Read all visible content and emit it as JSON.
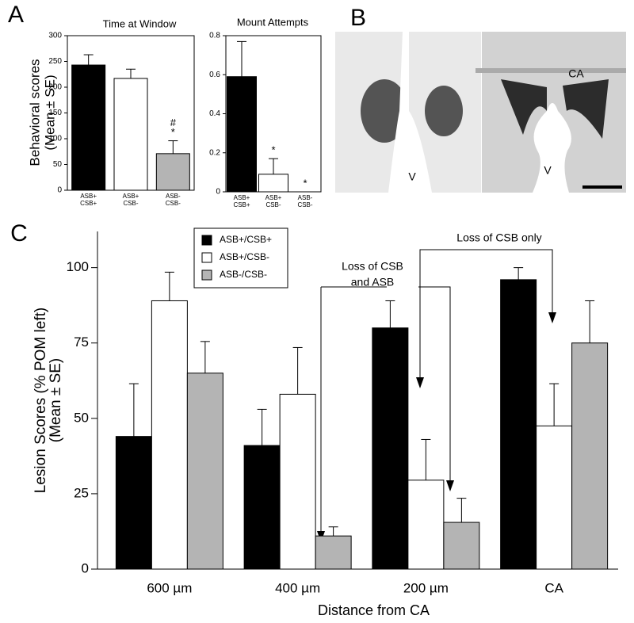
{
  "panels": [
    "A",
    "B",
    "C"
  ],
  "image_labels": [
    "V",
    "V",
    "CA"
  ],
  "chart_data": [
    {
      "type": "bar",
      "title": "Time at Window",
      "ylabel": [
        "Behavioral scores",
        "(Mean ± SE)"
      ],
      "categories": [
        [
          "ASB+",
          "CSB+"
        ],
        [
          "ASB+",
          "CSB-"
        ],
        [
          "ASB-",
          "CSB-"
        ]
      ],
      "values": [
        243,
        217,
        71
      ],
      "errors": [
        20,
        18,
        25
      ],
      "colors": [
        "#000000",
        "#ffffff",
        "#b4b4b4"
      ],
      "ylim": [
        0,
        300
      ],
      "yticks": [
        0,
        50,
        100,
        150,
        200,
        250,
        300
      ],
      "annotations": [
        "#",
        "*"
      ]
    },
    {
      "type": "bar",
      "title": "Mount Attempts",
      "categories": [
        [
          "ASB+",
          "CSB+"
        ],
        [
          "ASB+",
          "CSB-"
        ],
        [
          "ASB-",
          "CSB-"
        ]
      ],
      "values": [
        0.59,
        0.09,
        0
      ],
      "errors": [
        0.18,
        0.08,
        0
      ],
      "colors": [
        "#000000",
        "#ffffff",
        "#b4b4b4"
      ],
      "ylim": [
        0,
        0.8
      ],
      "yticks": [
        0,
        0.2,
        0.4,
        0.6,
        0.8
      ],
      "annotations": [
        "*",
        "*"
      ]
    },
    {
      "type": "grouped-bar",
      "ylabel": [
        "Lesion Scores (% POM left)",
        "(Mean ± SE)"
      ],
      "xlabel": "Distance from CA",
      "categories": [
        "600 µm",
        "400 µm",
        "200 µm",
        "CA"
      ],
      "series": [
        {
          "name": "ASB+/CSB+",
          "color": "#000000",
          "values": [
            44,
            41,
            80,
            96
          ],
          "errors": [
            17.5,
            12,
            9,
            4
          ]
        },
        {
          "name": "ASB+/CSB-",
          "color": "#ffffff",
          "values": [
            89,
            58,
            29.5,
            47.5
          ],
          "errors": [
            9.5,
            15.5,
            13.5,
            14
          ]
        },
        {
          "name": "ASB-/CSB-",
          "color": "#b4b4b4",
          "values": [
            65,
            11,
            15.5,
            75
          ],
          "errors": [
            10.5,
            3,
            8,
            14
          ]
        }
      ],
      "ylim": [
        0,
        112
      ],
      "yticks": [
        0,
        25,
        50,
        75,
        100
      ],
      "legend": "upper left",
      "annotations": [
        [
          "Loss of CSB",
          "and ASB"
        ],
        "Loss of CSB only"
      ]
    }
  ]
}
